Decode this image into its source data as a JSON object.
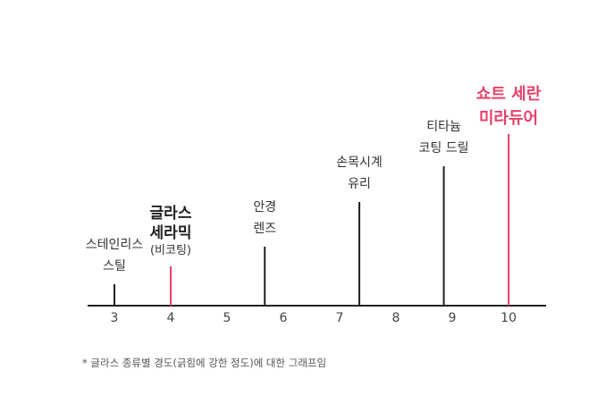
{
  "chart_data": {
    "type": "number-line",
    "xlabel": "",
    "ylabel": "",
    "xlim": [
      2.55,
      10.65
    ],
    "ticks": [
      3,
      4,
      5,
      6,
      7,
      8,
      9,
      10
    ],
    "items": [
      {
        "value": 3.0,
        "lines": [
          "스테인리스",
          "스틸"
        ],
        "style": "normal"
      },
      {
        "value": 4.0,
        "lines": [
          "글라스",
          "세라믹"
        ],
        "sub": "(비코팅)",
        "style": "emph"
      },
      {
        "value": 5.67,
        "lines": [
          "안경",
          "렌즈"
        ],
        "style": "normal"
      },
      {
        "value": 7.35,
        "lines": [
          "손목시계",
          "유리"
        ],
        "style": "normal"
      },
      {
        "value": 8.85,
        "lines": [
          "티타늄",
          "코팅 드릴"
        ],
        "style": "normal"
      },
      {
        "value": 10.0,
        "lines": [
          "쇼트 세란",
          "미라듀어"
        ],
        "style": "highlight"
      }
    ],
    "colors": {
      "axis": "#222222",
      "line": "#222222",
      "highlight": "#e8416a",
      "emph_line": "#e8416a"
    }
  },
  "footnote": "* 글라스 종류별 경도(긁힘에 강한 정도)에 대한 그래프임"
}
